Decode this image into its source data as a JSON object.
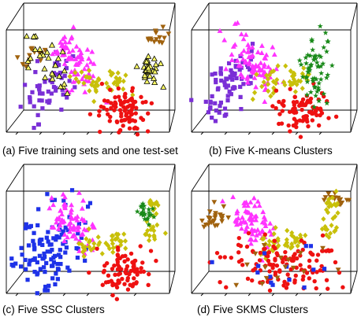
{
  "figure": {
    "captions": [
      "(a)  Five training sets and one test-set",
      "(b) Five K-means Clusters",
      "(c) Five SSC Clusters",
      "(d) Five SKMS Clusters"
    ]
  },
  "colors": {
    "brown": "#a0620e",
    "purple": "#7a2fd6",
    "magenta": "#ff33ff",
    "olive": "#c8c00a",
    "red": "#ee1111",
    "green": "#1a8a1a",
    "blue": "#1e32e8",
    "testset_fill": "#ffff66",
    "testset_edge": "#000000",
    "axes": "#000000"
  },
  "chart_data": [
    {
      "type": "scatter",
      "projection": "3d",
      "title": "(a)  Five training sets and one test-set",
      "grid": false,
      "series": [
        {
          "color": "brown",
          "marker": "triangle-down",
          "cluster": "A",
          "count": 30
        },
        {
          "color": "purple",
          "marker": "square",
          "cluster": "B",
          "count": 55
        },
        {
          "color": "magenta",
          "marker": "triangle-up",
          "cluster": "C",
          "count": 70
        },
        {
          "color": "olive",
          "marker": "diamond",
          "cluster": "D",
          "count": 45
        },
        {
          "color": "red",
          "marker": "circle",
          "cluster": "E",
          "count": 85
        },
        {
          "color": "testset_fill",
          "edge": "testset_edge",
          "marker": "triangle-up",
          "cluster": "T",
          "count": 60
        }
      ]
    },
    {
      "type": "scatter",
      "projection": "3d",
      "title": "(b) Five K-means Clusters",
      "grid": false,
      "series": [
        {
          "color": "purple",
          "marker": "square",
          "cluster": "B",
          "count": 75
        },
        {
          "color": "magenta",
          "marker": "triangle-up",
          "cluster": "C",
          "count": 80
        },
        {
          "color": "olive",
          "marker": "diamond",
          "cluster": "D",
          "count": 45
        },
        {
          "color": "red",
          "marker": "circle",
          "cluster": "E",
          "count": 85
        },
        {
          "color": "green",
          "marker": "star",
          "cluster": "F",
          "count": 60
        }
      ]
    },
    {
      "type": "scatter",
      "projection": "3d",
      "title": "(c) Five SSC Clusters",
      "grid": false,
      "series": [
        {
          "color": "blue",
          "marker": "square",
          "cluster": "G",
          "count": 110
        },
        {
          "color": "magenta",
          "marker": "triangle-up",
          "cluster": "C",
          "count": 70
        },
        {
          "color": "olive",
          "marker": "diamond",
          "cluster": "D",
          "count": 40
        },
        {
          "color": "olive",
          "marker": "diamond",
          "cluster": "H",
          "count": 30
        },
        {
          "color": "green",
          "marker": "star",
          "cluster": "I",
          "count": 25
        },
        {
          "color": "red",
          "marker": "circle",
          "cluster": "E",
          "count": 85
        }
      ]
    },
    {
      "type": "scatter",
      "projection": "3d",
      "title": "(d) Five SKMS Clusters",
      "grid": false,
      "series": [
        {
          "color": "brown",
          "marker": "triangle-down",
          "cluster": "A",
          "count": 30
        },
        {
          "color": "magenta",
          "marker": "triangle-up",
          "cluster": "C",
          "count": 70
        },
        {
          "color": "olive",
          "marker": "diamond",
          "cluster": "D",
          "count": 45
        },
        {
          "color": "olive",
          "marker": "diamond",
          "cluster": "H",
          "count": 30
        },
        {
          "color": "red",
          "marker": "circle",
          "cluster": "J",
          "count": 130
        },
        {
          "color": "blue",
          "marker": "square",
          "cluster": "J",
          "count": 14
        },
        {
          "color": "brown",
          "marker": "triangle-down",
          "cluster": "J",
          "count": 16
        },
        {
          "color": "brown",
          "marker": "triangle-down",
          "cluster": "K",
          "count": 8
        }
      ]
    }
  ]
}
